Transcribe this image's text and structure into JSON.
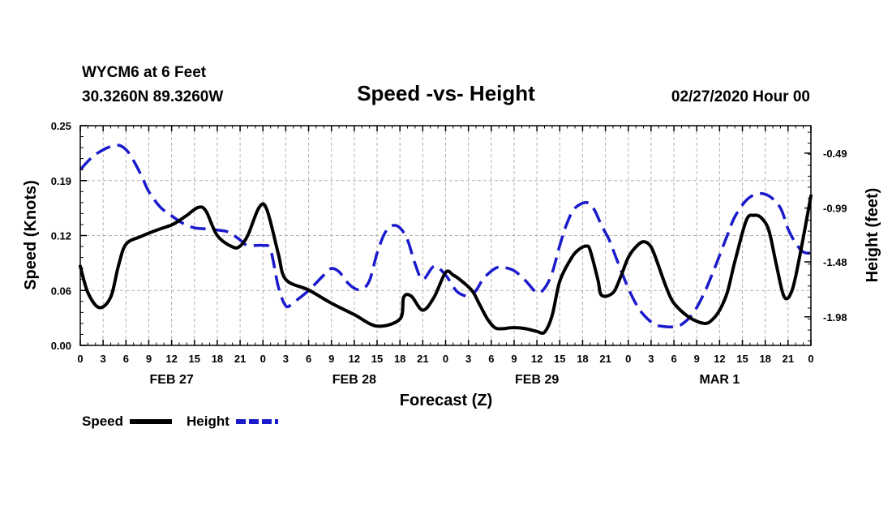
{
  "header": {
    "station": "WYCM6 at 6 Feet",
    "coords": "30.3260N 89.3260W",
    "title": "Speed -vs- Height",
    "timestamp": "02/27/2020 Hour 00"
  },
  "legend": {
    "speed_label": "Speed",
    "height_label": "Height"
  },
  "colors": {
    "speed": "#000000",
    "height": "#1a1acc",
    "grid": "#b3b3b3"
  },
  "chart_data": {
    "type": "line",
    "title": "Speed -vs- Height",
    "xlabel": "Forecast (Z)",
    "ylabel_left": "Speed (Knots)",
    "ylabel_right": "Height (feet)",
    "xlim": [
      0,
      96
    ],
    "ylim_left": [
      0,
      0.25
    ],
    "ylim_right": [
      -2.24,
      -0.24
    ],
    "y_left_ticks": [
      "0.00",
      "0.06",
      "0.12",
      "0.19",
      "0.25"
    ],
    "y_left_tick_values": [
      0,
      0.0625,
      0.125,
      0.1875,
      0.25
    ],
    "y_right_ticks": [
      "-0.49",
      "-0.99",
      "-1.48",
      "-1.98"
    ],
    "y_right_tick_values": [
      -0.49,
      -0.99,
      -1.48,
      -1.98
    ],
    "x_tick_labels": [
      "0",
      "3",
      "6",
      "9",
      "12",
      "15",
      "18",
      "21",
      "0",
      "3",
      "6",
      "9",
      "12",
      "15",
      "18",
      "21",
      "0",
      "3",
      "6",
      "9",
      "12",
      "15",
      "18",
      "21",
      "0",
      "3",
      "6",
      "9",
      "12",
      "15",
      "18",
      "21",
      "0"
    ],
    "date_labels": [
      {
        "label": "FEB 27",
        "hour": 12
      },
      {
        "label": "FEB 28",
        "hour": 36
      },
      {
        "label": "FEB 29",
        "hour": 60
      },
      {
        "label": "MAR 1",
        "hour": 84
      }
    ],
    "series": [
      {
        "name": "Speed",
        "axis": "left",
        "style": "solid",
        "x": [
          0,
          1,
          2.5,
          4,
          5,
          6,
          8,
          10,
          12,
          13,
          14,
          15.5,
          16.5,
          18,
          20,
          21,
          22,
          23.5,
          24.5,
          26,
          27,
          30,
          33,
          36,
          39,
          42,
          42.5,
          43.5,
          45,
          46.5,
          48,
          49,
          50,
          51.5,
          52.5,
          53.5,
          54.5,
          55.5,
          56.5,
          57.5,
          58.5,
          59.5,
          60,
          61,
          62,
          63,
          64.5,
          65.5,
          66.5,
          67,
          68,
          68.5,
          70,
          71,
          72,
          73,
          74,
          75,
          76,
          77,
          78,
          80,
          82,
          83,
          84,
          85,
          86,
          87.5,
          88.5,
          89.5,
          90.5,
          91.5,
          92.5,
          93.5,
          94.5,
          96
        ],
        "values": [
          0.09,
          0.06,
          0.043,
          0.055,
          0.09,
          0.115,
          0.124,
          0.131,
          0.137,
          0.142,
          0.148,
          0.157,
          0.153,
          0.125,
          0.112,
          0.113,
          0.125,
          0.157,
          0.155,
          0.105,
          0.075,
          0.063,
          0.048,
          0.035,
          0.022,
          0.03,
          0.055,
          0.056,
          0.04,
          0.055,
          0.083,
          0.08,
          0.074,
          0.062,
          0.046,
          0.03,
          0.02,
          0.019,
          0.02,
          0.02,
          0.019,
          0.017,
          0.016,
          0.015,
          0.034,
          0.073,
          0.099,
          0.109,
          0.113,
          0.108,
          0.075,
          0.057,
          0.06,
          0.078,
          0.1,
          0.112,
          0.118,
          0.112,
          0.09,
          0.066,
          0.048,
          0.032,
          0.025,
          0.029,
          0.04,
          0.06,
          0.095,
          0.142,
          0.148,
          0.145,
          0.13,
          0.09,
          0.055,
          0.062,
          0.1,
          0.17
        ]
      },
      {
        "name": "Height",
        "axis": "right",
        "style": "dashed",
        "x": [
          0,
          1.5,
          3,
          4.5,
          5.5,
          6.5,
          8,
          9,
          10.5,
          12,
          13.5,
          15,
          16.5,
          18,
          19.5,
          21,
          22,
          24,
          25,
          26,
          27,
          28,
          30,
          32,
          33,
          34,
          35,
          36,
          37,
          38,
          39,
          40,
          41,
          42,
          43,
          44,
          45,
          46.5,
          48,
          49.5,
          51,
          52,
          53,
          54.5,
          55.5,
          57,
          58.5,
          60,
          61,
          62,
          63,
          64,
          65,
          66.5,
          67.5,
          68.5,
          69.5,
          70.5,
          72,
          73,
          74,
          75.5,
          77,
          78,
          79,
          80.5,
          82,
          83.5,
          85,
          86,
          87.5,
          89,
          90.5,
          92,
          93,
          94,
          95,
          96
        ],
        "values": [
          -0.64,
          -0.53,
          -0.46,
          -0.42,
          -0.43,
          -0.5,
          -0.69,
          -0.84,
          -0.98,
          -1.06,
          -1.13,
          -1.17,
          -1.18,
          -1.19,
          -1.21,
          -1.28,
          -1.33,
          -1.33,
          -1.37,
          -1.7,
          -1.88,
          -1.85,
          -1.74,
          -1.6,
          -1.54,
          -1.57,
          -1.66,
          -1.72,
          -1.73,
          -1.65,
          -1.4,
          -1.22,
          -1.15,
          -1.17,
          -1.28,
          -1.5,
          -1.64,
          -1.52,
          -1.6,
          -1.75,
          -1.79,
          -1.74,
          -1.63,
          -1.54,
          -1.53,
          -1.56,
          -1.65,
          -1.76,
          -1.72,
          -1.58,
          -1.33,
          -1.12,
          -0.99,
          -0.94,
          -1.0,
          -1.15,
          -1.28,
          -1.46,
          -1.72,
          -1.86,
          -1.96,
          -2.05,
          -2.07,
          -2.07,
          -2.05,
          -1.95,
          -1.76,
          -1.51,
          -1.24,
          -1.07,
          -0.92,
          -0.86,
          -0.88,
          -0.99,
          -1.18,
          -1.31,
          -1.39,
          -1.4
        ]
      }
    ]
  }
}
